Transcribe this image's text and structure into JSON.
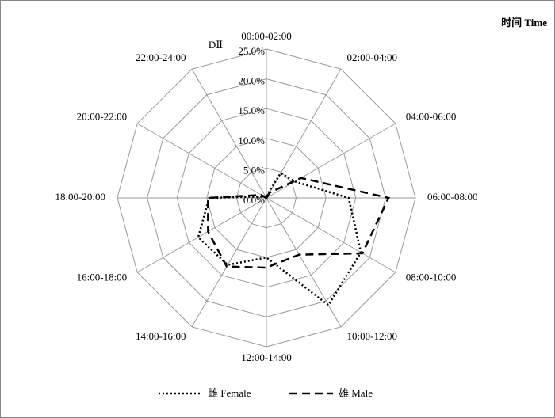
{
  "chart_data": {
    "type": "radar",
    "title": "时间 Time",
    "panel_label": "DⅡ",
    "categories": [
      "00:00-02:00",
      "02:00-04:00",
      "04:00-06:00",
      "06:00-08:00",
      "08:00-10:00",
      "10:00-12:00",
      "12:00-14:00",
      "14:00-16:00",
      "16:00-18:00",
      "18:00-20:00",
      "20:00-22:00",
      "22:00-24:00"
    ],
    "ylim": [
      0,
      25
    ],
    "yticks": [
      {
        "value": 0,
        "label": "0.0%"
      },
      {
        "value": 5,
        "label": "5.0%"
      },
      {
        "value": 10,
        "label": "10.0%"
      },
      {
        "value": 15,
        "label": "15.0%"
      },
      {
        "value": 20,
        "label": "20.0%"
      },
      {
        "value": 25,
        "label": "25.0%"
      }
    ],
    "series": [
      {
        "name": "雌 Female",
        "color": "#000000",
        "dash": "dotted",
        "values": [
          0.3,
          4.8,
          5.5,
          13.8,
          18.3,
          20.8,
          10,
          13,
          13.2,
          9.6,
          0.5,
          0
        ]
      },
      {
        "name": "雄 Male",
        "color": "#000000",
        "dash": "dashed",
        "values": [
          0,
          1,
          6.7,
          20.5,
          18.6,
          11,
          11.7,
          13.3,
          11.3,
          9.8,
          1,
          0
        ]
      }
    ]
  }
}
